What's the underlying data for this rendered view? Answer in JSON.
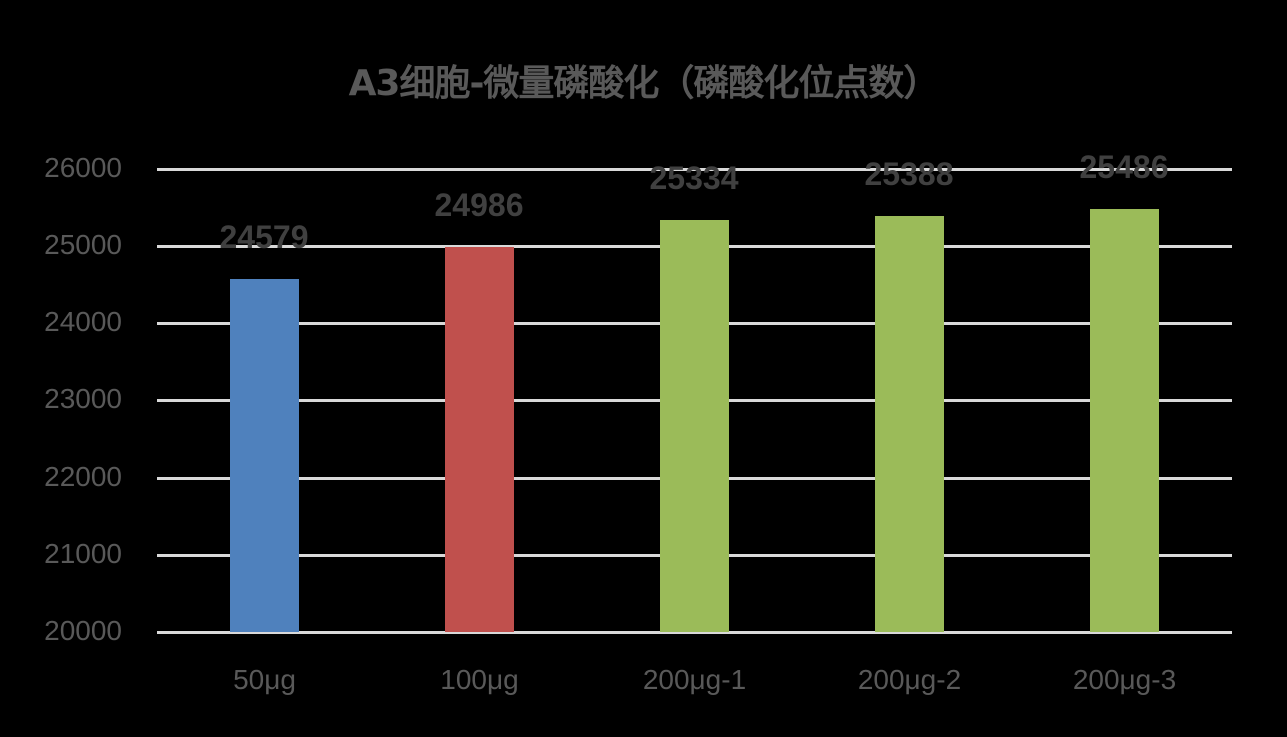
{
  "chart_data": {
    "type": "bar",
    "title": "A3细胞-微量磷酸化（磷酸化位点数）",
    "xlabel": "",
    "ylabel": "",
    "categories": [
      "50μg",
      "100μg",
      "200μg-1",
      "200μg-2",
      "200μg-3"
    ],
    "values": [
      24579,
      24986,
      25334,
      25388,
      25486
    ],
    "colors": [
      "#4f81bd",
      "#c0504d",
      "#9bbb59",
      "#9bbb59",
      "#9bbb59"
    ],
    "ylim": [
      20000,
      26000
    ],
    "yticks": [
      "20000",
      "21000",
      "22000",
      "23000",
      "24000",
      "25000",
      "26000"
    ],
    "grid": true,
    "legend": "none",
    "data_labels": [
      "24579",
      "24986",
      "25334",
      "25388",
      "25486"
    ]
  }
}
